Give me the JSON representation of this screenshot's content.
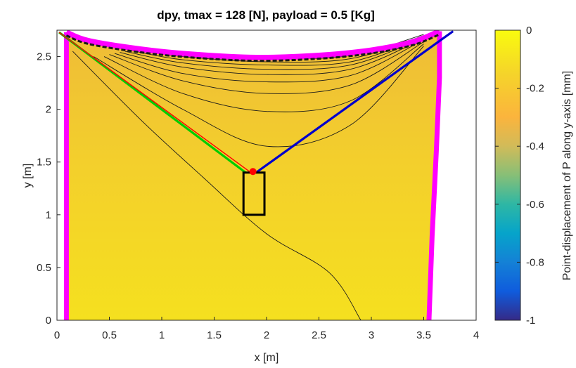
{
  "chart_data": {
    "type": "contour",
    "title": "dpy, tmax = 128 [N], payload = 0.5 [Kg]",
    "xlabel": "x [m]",
    "ylabel": "y [m]",
    "xlim": [
      0,
      4
    ],
    "ylim": [
      0,
      2.75
    ],
    "x_ticks": [
      "0",
      "0.5",
      "1",
      "1.5",
      "2",
      "2.5",
      "3",
      "3.5",
      "4"
    ],
    "y_ticks": [
      "0",
      "0.5",
      "1",
      "1.5",
      "2",
      "2.5"
    ],
    "colorbar": {
      "label": "Point-displacement of P along y-axis [mm]",
      "range": [
        -1,
        0
      ],
      "ticks": [
        "0",
        "-0.2",
        "-0.4",
        "-0.6",
        "-0.8",
        "-1"
      ],
      "colormap": "parula"
    },
    "workspace_boundary": {
      "color": "#ff00ff",
      "left": [
        [
          0.09,
          0
        ],
        [
          0.09,
          2.73
        ]
      ],
      "top": [
        [
          0.09,
          2.73
        ],
        [
          0.3,
          2.65
        ],
        [
          0.8,
          2.57
        ],
        [
          1.3,
          2.52
        ],
        [
          1.9,
          2.49
        ],
        [
          2.5,
          2.51
        ],
        [
          3.0,
          2.56
        ],
        [
          3.4,
          2.64
        ],
        [
          3.65,
          2.74
        ]
      ],
      "right": [
        [
          3.65,
          2.74
        ],
        [
          3.65,
          2.3
        ],
        [
          3.62,
          1.6
        ],
        [
          3.58,
          0.8
        ],
        [
          3.55,
          0
        ]
      ]
    },
    "cables": [
      {
        "color": "#00cc00",
        "points": [
          [
            0.02,
            2.73
          ],
          [
            1.8,
            1.4
          ]
        ]
      },
      {
        "color": "#ff0000",
        "points": [
          [
            0.02,
            2.73
          ],
          [
            1.85,
            1.4
          ]
        ]
      },
      {
        "color": "#0000cc",
        "points": [
          [
            1.9,
            1.4
          ],
          [
            3.78,
            2.74
          ]
        ]
      }
    ],
    "payload_point": {
      "x": 1.87,
      "y": 1.41,
      "color": "#ff0000"
    },
    "payload_box": {
      "x": [
        1.78,
        1.98
      ],
      "y": [
        1.0,
        1.4
      ]
    },
    "contours": [
      [
        [
          0.15,
          2.55
        ],
        [
          0.8,
          1.9
        ],
        [
          1.4,
          1.35
        ],
        [
          2.0,
          0.82
        ],
        [
          2.6,
          0.45
        ],
        [
          2.9,
          0.0
        ]
      ],
      [
        [
          0.35,
          2.5
        ],
        [
          1.2,
          2.0
        ],
        [
          2.0,
          1.65
        ],
        [
          2.8,
          1.85
        ],
        [
          3.5,
          2.6
        ]
      ],
      [
        [
          0.45,
          2.5
        ],
        [
          1.2,
          2.15
        ],
        [
          2.0,
          1.98
        ],
        [
          2.8,
          2.08
        ],
        [
          3.5,
          2.62
        ]
      ],
      [
        [
          0.5,
          2.52
        ],
        [
          1.2,
          2.27
        ],
        [
          2.0,
          2.15
        ],
        [
          2.8,
          2.23
        ],
        [
          3.5,
          2.64
        ]
      ],
      [
        [
          0.55,
          2.53
        ],
        [
          1.2,
          2.34
        ],
        [
          2.0,
          2.26
        ],
        [
          2.8,
          2.32
        ],
        [
          3.5,
          2.66
        ]
      ],
      [
        [
          0.6,
          2.54
        ],
        [
          1.2,
          2.4
        ],
        [
          2.0,
          2.33
        ],
        [
          2.8,
          2.38
        ],
        [
          3.5,
          2.67
        ]
      ],
      [
        [
          0.65,
          2.55
        ],
        [
          1.2,
          2.44
        ],
        [
          2.0,
          2.38
        ],
        [
          2.8,
          2.42
        ],
        [
          3.5,
          2.68
        ]
      ],
      [
        [
          0.7,
          2.56
        ],
        [
          1.2,
          2.47
        ],
        [
          2.0,
          2.42
        ],
        [
          2.8,
          2.45
        ],
        [
          3.5,
          2.69
        ]
      ],
      [
        [
          0.75,
          2.56
        ],
        [
          1.2,
          2.5
        ],
        [
          2.0,
          2.45
        ],
        [
          2.8,
          2.48
        ],
        [
          3.5,
          2.7
        ]
      ],
      [
        [
          0.8,
          2.57
        ],
        [
          1.2,
          2.52
        ],
        [
          2.0,
          2.48
        ],
        [
          2.8,
          2.51
        ],
        [
          3.5,
          2.71
        ]
      ]
    ]
  }
}
